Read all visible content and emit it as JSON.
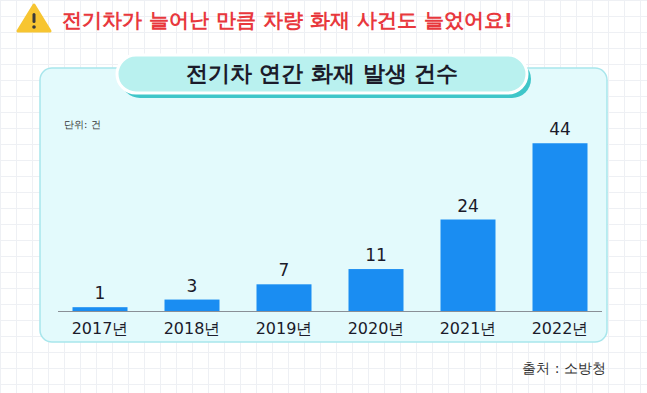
{
  "chart_data": {
    "type": "bar",
    "subtitle": "전기차가 늘어난 만큼 차량 화재 사건도 늘었어요!",
    "title": "전기차 연간 화재 발생 건수",
    "ylabel": "단위: 건",
    "source": "출처 : 소방청",
    "categories": [
      "2017년",
      "2018년",
      "2019년",
      "2020년",
      "2021년",
      "2022년"
    ],
    "values": [
      1,
      3,
      7,
      11,
      24,
      44
    ],
    "color": "#1a8df2",
    "ylim": [
      0,
      48
    ],
    "data_labels": true,
    "tick_labels": "x"
  }
}
